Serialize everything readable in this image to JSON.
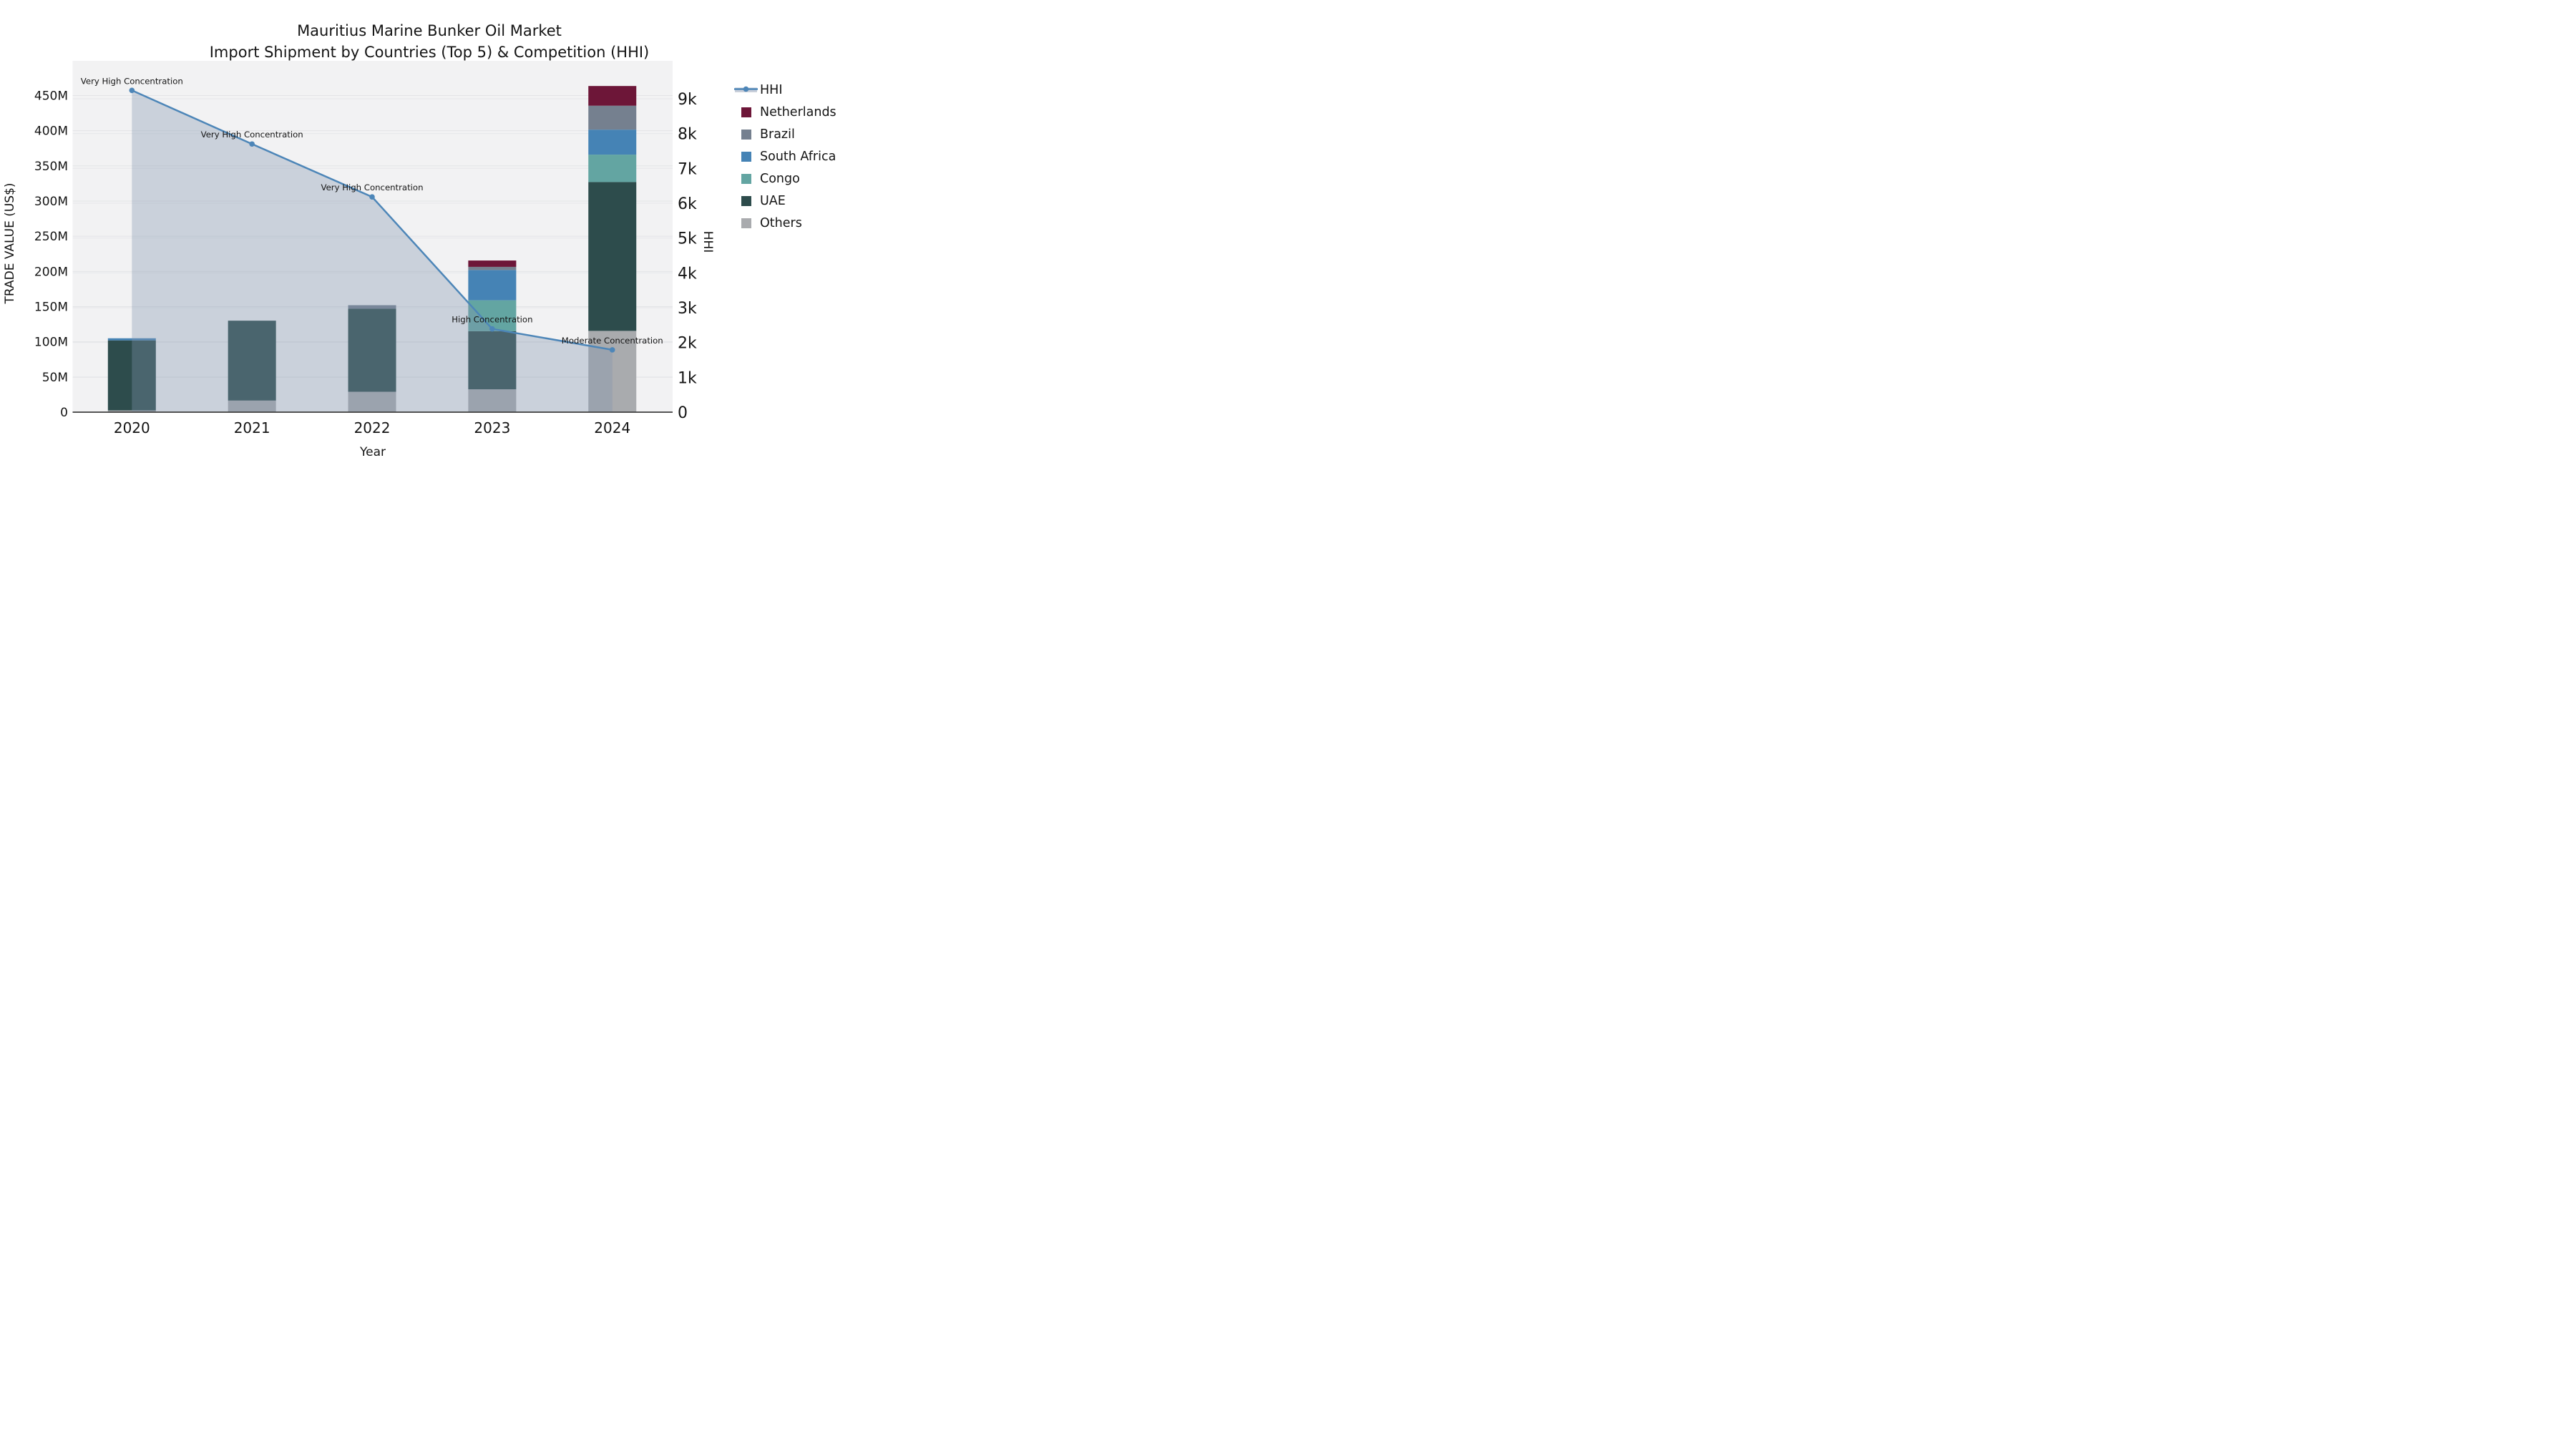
{
  "title": {
    "line1": "Mauritius Marine Bunker Oil Market",
    "line2": "Import Shipment by Countries (Top 5) & Competition (HHI)"
  },
  "chart_data": {
    "type": "combo: stacked-bar + line (dual axis)",
    "title": "Mauritius Marine Bunker Oil Market",
    "subtitle": "Import Shipment by Countries (Top 5) & Competition (HHI)",
    "xlabel": "Year",
    "ylabel_left": "TRADE VALUE (US$)",
    "ylabel_right": "HHI",
    "categories": [
      "2020",
      "2021",
      "2022",
      "2023",
      "2024"
    ],
    "bar_unit": "million US$",
    "stack_order_bottom_to_top": [
      "Others",
      "UAE",
      "Congo",
      "South Africa",
      "Brazil",
      "Netherlands"
    ],
    "series": [
      {
        "name": "Others",
        "color": "#a9abae",
        "values": [
          2.5,
          16.5,
          29,
          32.5,
          115.5
        ]
      },
      {
        "name": "UAE",
        "color": "#2d4c4c",
        "values": [
          99.5,
          113.5,
          118,
          82.5,
          211.5
        ]
      },
      {
        "name": "Congo",
        "color": "#63a5a2",
        "values": [
          0,
          0,
          0,
          44,
          39
        ]
      },
      {
        "name": "South Africa",
        "color": "#4583b5",
        "values": [
          3,
          0,
          0,
          43,
          35.5
        ]
      },
      {
        "name": "Brazil",
        "color": "#75808f",
        "values": [
          0,
          0,
          5,
          4.5,
          34
        ]
      },
      {
        "name": "Netherlands",
        "color": "#6d1638",
        "values": [
          0,
          0,
          0,
          9,
          28
        ]
      }
    ],
    "bar_totals_M": [
      105,
      130,
      152,
      215.5,
      463.5
    ],
    "line_series": {
      "name": "HHI",
      "color": "#4d86b8",
      "area_fill": "rgba(130,150,175,0.35)",
      "values": [
        9240,
        7700,
        6180,
        2390,
        1790
      ]
    },
    "annotations": [
      {
        "category": "2020",
        "text": "Very High Concentration"
      },
      {
        "category": "2021",
        "text": "Very High Concentration"
      },
      {
        "category": "2022",
        "text": "Very High Concentration"
      },
      {
        "category": "2023",
        "text": "High Concentration"
      },
      {
        "category": "2024",
        "text": "Moderate Concentration"
      }
    ],
    "left_axis": {
      "tick_labels": [
        "0",
        "50M",
        "100M",
        "150M",
        "200M",
        "250M",
        "300M",
        "350M",
        "400M",
        "450M"
      ],
      "range": [
        0,
        500000000
      ],
      "grid": true
    },
    "right_axis": {
      "tick_labels": [
        "0",
        "1k",
        "2k",
        "3k",
        "4k",
        "5k",
        "6k",
        "7k",
        "8k",
        "9k"
      ],
      "range": [
        0,
        10100
      ],
      "grid": true
    },
    "legend": {
      "position": "right",
      "entries": [
        {
          "label": "HHI",
          "swatch": "line",
          "color": "#4d86b8",
          "band": "#c9cfda"
        },
        {
          "label": "Netherlands",
          "swatch": "patch",
          "color": "#6d1638"
        },
        {
          "label": "Brazil",
          "swatch": "patch",
          "color": "#75808f"
        },
        {
          "label": "South Africa",
          "swatch": "patch",
          "color": "#4583b5"
        },
        {
          "label": "Congo",
          "swatch": "patch",
          "color": "#63a5a2"
        },
        {
          "label": "UAE",
          "swatch": "patch",
          "color": "#2d4c4c"
        },
        {
          "label": "Others",
          "swatch": "patch",
          "color": "#a9abae"
        }
      ]
    },
    "plot_background": "#f2f2f3",
    "gridline_color": "#e3e4e7",
    "axis_line_color": "#3d3d3d",
    "text_color": "#141414"
  }
}
